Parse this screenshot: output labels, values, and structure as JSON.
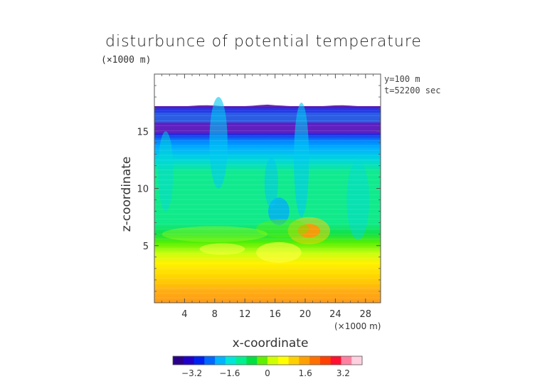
{
  "chart_data": {
    "type": "heatmap",
    "title": "disturbunce of potential temperature",
    "y_unit": "(×1000 m)",
    "x_unit": "(×1000 m)",
    "xlabel": "x-coordinate",
    "ylabel": "z-coordinate",
    "annotations": [
      "y=100 m",
      "t=52200 sec"
    ],
    "xlim": [
      0,
      30
    ],
    "ylim": [
      0,
      20
    ],
    "x_ticks": [
      4,
      8,
      12,
      16,
      20,
      24,
      28
    ],
    "y_ticks": [
      5,
      10,
      15
    ],
    "tropopause_height_km": 17.2,
    "colorbar": {
      "min": -4,
      "max": 4,
      "tick_values": [
        -3.2,
        -1.6,
        0,
        1.6,
        3.2
      ],
      "tick_labels": [
        "−3.2",
        "−1.6",
        "0",
        "1.6",
        "3.2"
      ],
      "colors": [
        "#2a008a",
        "#2000c8",
        "#0020f0",
        "#0068ff",
        "#00b4ff",
        "#00e6d8",
        "#00f090",
        "#00e040",
        "#60f000",
        "#d0ff00",
        "#ffff00",
        "#ffd000",
        "#ffa000",
        "#ff7000",
        "#ff4000",
        "#ff1030",
        "#ff80a0",
        "#ffd0e0"
      ]
    },
    "profile_layers": [
      {
        "z_from": 0,
        "z_to": 1,
        "value": 1.9
      },
      {
        "z_from": 1,
        "z_to": 2.5,
        "value": 1.4
      },
      {
        "z_from": 2.5,
        "z_to": 4.5,
        "value": 0.8
      },
      {
        "z_from": 4.5,
        "z_to": 6.5,
        "value": 0.2
      },
      {
        "z_from": 6.5,
        "z_to": 7.5,
        "value": -0.4
      },
      {
        "z_from": 7.5,
        "z_to": 14.5,
        "value": -0.8
      },
      {
        "z_from": 14.5,
        "z_to": 16.5,
        "value": -1.5
      },
      {
        "z_from": 16.5,
        "z_to": 17.2,
        "value": -2.2
      }
    ]
  }
}
